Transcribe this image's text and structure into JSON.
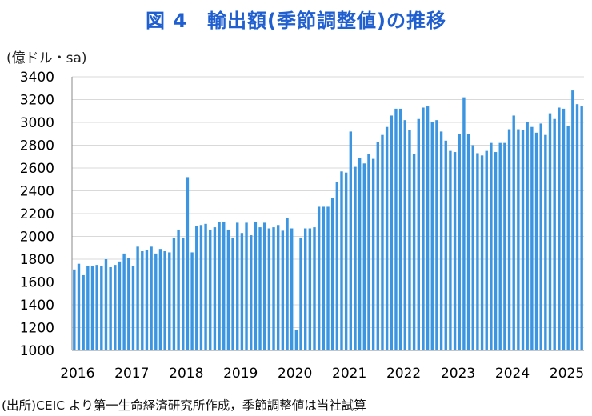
{
  "title": "図 4　輸出額(季節調整値)の推移",
  "unit_label": "(億ドル・sa)",
  "source_note": "(出所)CEIC より第一生命経済研究所作成，季節調整値は当社試算",
  "colors": {
    "bar": "#3b95e0",
    "title": "#1f5fd0",
    "grid": "#d9d9d9"
  },
  "chart_data": {
    "type": "bar",
    "title": "図 4　輸出額(季節調整値)の推移",
    "ylabel": "(億ドル・sa)",
    "xlabel": "",
    "ylim": [
      1000,
      3400
    ],
    "yticks": [
      1000,
      1200,
      1400,
      1600,
      1800,
      2000,
      2200,
      2400,
      2600,
      2800,
      3000,
      3200,
      3400
    ],
    "x_tick_labels": [
      "2016",
      "2017",
      "2018",
      "2019",
      "2020",
      "2021",
      "2022",
      "2023",
      "2024",
      "2025"
    ],
    "grid": true,
    "legend": "none",
    "start": "2016-01",
    "frequency": "monthly",
    "values": [
      1710,
      1760,
      1660,
      1740,
      1740,
      1750,
      1740,
      1800,
      1730,
      1750,
      1780,
      1850,
      1810,
      1740,
      1910,
      1870,
      1880,
      1910,
      1850,
      1890,
      1870,
      1860,
      1990,
      2060,
      1990,
      2520,
      1860,
      2090,
      2100,
      2110,
      2060,
      2080,
      2130,
      2130,
      2060,
      1990,
      2120,
      2030,
      2120,
      2010,
      2130,
      2080,
      2120,
      2070,
      2080,
      2100,
      2050,
      2160,
      2070,
      1180,
      1990,
      2070,
      2070,
      2080,
      2260,
      2260,
      2260,
      2340,
      2480,
      2570,
      2560,
      2920,
      2610,
      2690,
      2640,
      2720,
      2680,
      2830,
      2890,
      2960,
      3060,
      3120,
      3120,
      3020,
      2930,
      2720,
      3030,
      3130,
      3140,
      3000,
      3020,
      2920,
      2840,
      2750,
      2740,
      2900,
      3220,
      2900,
      2800,
      2730,
      2710,
      2750,
      2820,
      2740,
      2820,
      2820,
      2940,
      3060,
      2940,
      2930,
      3000,
      2960,
      2910,
      2990,
      2890,
      3080,
      3030,
      3130,
      3120,
      2970,
      3280,
      3160,
      3140
    ]
  }
}
